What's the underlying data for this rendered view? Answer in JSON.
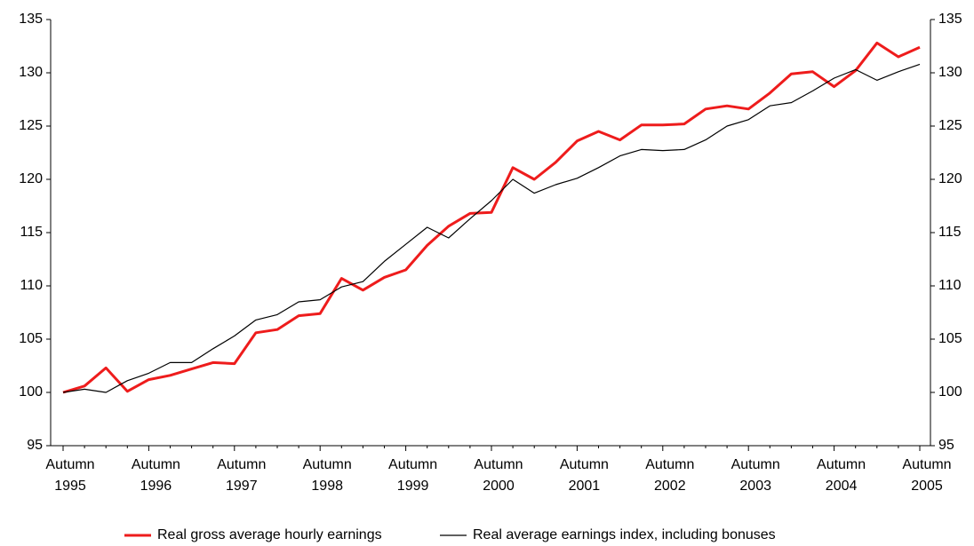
{
  "chart_data": {
    "type": "line",
    "categories": [
      "Autumn 1995",
      null,
      null,
      null,
      "Autumn 1996",
      null,
      null,
      null,
      "Autumn 1997",
      null,
      null,
      null,
      "Autumn 1998",
      null,
      null,
      null,
      "Autumn 1999",
      null,
      null,
      null,
      "Autumn 2000",
      null,
      null,
      null,
      "Autumn 2001",
      null,
      null,
      null,
      "Autumn 2002",
      null,
      null,
      null,
      "Autumn 2003",
      null,
      null,
      null,
      "Autumn 2004",
      null,
      null,
      null,
      "Autumn 2005"
    ],
    "series": [
      {
        "name": "Real gross average hourly earnings",
        "color": "#ee1c1c",
        "values": [
          100,
          100.6,
          102.3,
          100.1,
          101.2,
          101.6,
          102.2,
          102.8,
          102.7,
          105.6,
          105.9,
          107.2,
          107.4,
          110.7,
          109.6,
          110.8,
          111.5,
          113.8,
          115.6,
          116.8,
          116.9,
          121.1,
          120.0,
          121.6,
          123.6,
          124.5,
          123.7,
          125.1,
          125.1,
          125.2,
          126.6,
          126.9,
          126.6,
          128.1,
          129.9,
          130.1,
          128.7,
          130.2,
          132.8,
          131.5,
          132.4
        ]
      },
      {
        "name": "Real average earnings index, including bonuses",
        "color": "#000000",
        "values": [
          100,
          100.3,
          100.0,
          101.1,
          101.8,
          102.8,
          102.8,
          104.1,
          105.3,
          106.8,
          107.3,
          108.5,
          108.7,
          109.9,
          110.4,
          112.3,
          113.9,
          115.5,
          114.5,
          116.3,
          118.0,
          120.0,
          118.7,
          119.5,
          120.1,
          121.1,
          122.2,
          122.8,
          122.7,
          122.8,
          123.7,
          125.0,
          125.6,
          126.9,
          127.2,
          128.3,
          129.5,
          130.3,
          129.3,
          130.1,
          130.8
        ]
      }
    ],
    "ylim": [
      95,
      135
    ],
    "yticks": [
      95,
      100,
      105,
      110,
      115,
      120,
      125,
      130,
      135
    ],
    "y2lim": [
      95,
      135
    ],
    "y2ticks": [
      95,
      100,
      105,
      110,
      115,
      120,
      125,
      130,
      135
    ],
    "grid": false,
    "legend": "bottom"
  }
}
